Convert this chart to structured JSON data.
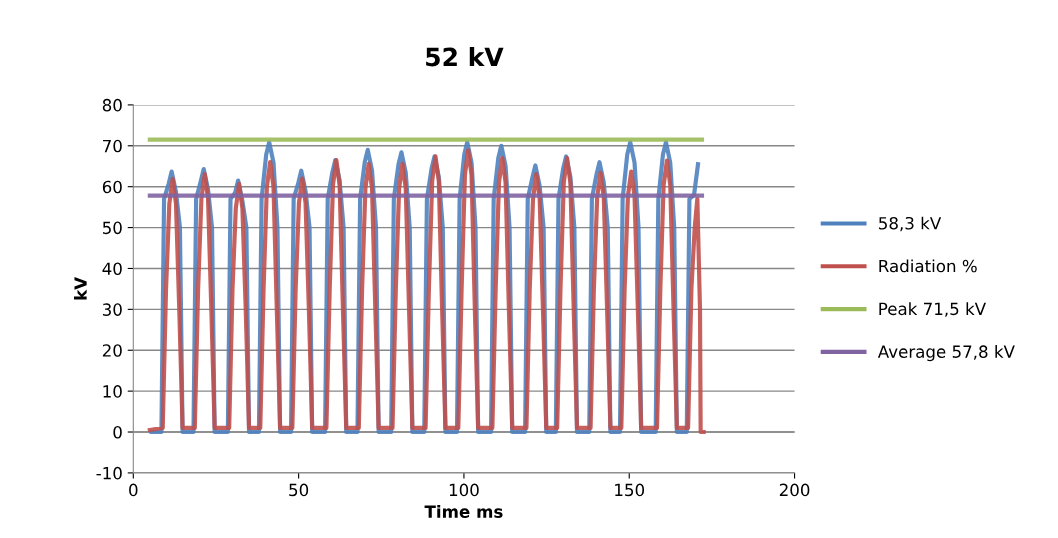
{
  "chart_data": {
    "type": "line",
    "title": "52 kV",
    "xlabel": "Time ms",
    "ylabel": "kV",
    "xlim": [
      0,
      200
    ],
    "xticks": [
      0,
      50,
      100,
      150,
      200
    ],
    "ylim": [
      -10,
      80
    ],
    "yticks": [
      -10,
      0,
      10,
      20,
      30,
      40,
      50,
      60,
      70,
      80
    ],
    "grid": "y",
    "legend": "right",
    "marker": "none",
    "line_style": "solid",
    "series": [
      {
        "name": "58,3 kV",
        "color": "#4f81bd",
        "x": [
          5.5,
          8.5,
          9.3,
          10.7,
          11.6,
          12.9,
          14.1,
          14.9,
          18.2,
          19.0,
          20.4,
          21.3,
          22.6,
          23.8,
          24.6,
          28.6,
          29.4,
          30.8,
          31.7,
          33.0,
          34.2,
          35.0,
          38.0,
          38.8,
          40.2,
          41.1,
          42.4,
          43.6,
          44.4,
          47.7,
          48.5,
          49.9,
          50.8,
          52.1,
          53.3,
          54.1,
          58.0,
          58.8,
          60.2,
          61.1,
          62.4,
          63.6,
          64.4,
          67.8,
          68.6,
          70.0,
          70.9,
          72.2,
          73.4,
          74.2,
          78.0,
          78.8,
          80.2,
          81.1,
          82.4,
          83.6,
          84.4,
          88.0,
          88.8,
          90.2,
          91.1,
          92.4,
          93.6,
          94.4,
          97.9,
          98.7,
          100.1,
          101.0,
          102.3,
          103.5,
          104.3,
          108.2,
          109.0,
          110.4,
          111.3,
          112.6,
          113.8,
          114.6,
          118.5,
          119.3,
          120.7,
          121.6,
          122.9,
          124.1,
          124.9,
          127.8,
          128.6,
          130.0,
          130.9,
          132.2,
          133.4,
          134.2,
          137.9,
          138.7,
          140.1,
          141.0,
          142.3,
          143.5,
          144.3,
          147.2,
          148.0,
          149.4,
          150.3,
          151.6,
          152.8,
          153.6,
          158.0,
          158.8,
          160.2,
          161.1,
          162.4,
          163.6,
          164.4,
          167.4,
          168.2,
          169.6,
          170.8
        ],
        "values": [
          0,
          0,
          57,
          60.7,
          63.7,
          58.7,
          50,
          0,
          0,
          57,
          61.3,
          64.3,
          59.3,
          50,
          0,
          0,
          57,
          58.5,
          61.5,
          56.5,
          50,
          0,
          0,
          57,
          67.9,
          70.9,
          65.9,
          50,
          0,
          0,
          57,
          60.9,
          63.9,
          58.9,
          50,
          0,
          0,
          57,
          63.5,
          66.5,
          61.5,
          50,
          0,
          0,
          57,
          66,
          69,
          64,
          50,
          0,
          0,
          57,
          65.4,
          68.4,
          63.4,
          50,
          0,
          0,
          57,
          64.4,
          67.4,
          62.4,
          50,
          0,
          0,
          57,
          67.9,
          70.9,
          65.9,
          50,
          0,
          0,
          57,
          67,
          70,
          65,
          50,
          0,
          0,
          57,
          62.2,
          65.2,
          60.2,
          50,
          0,
          0,
          57,
          64.4,
          67.4,
          62.4,
          50,
          0,
          0,
          57,
          63,
          66,
          61,
          50,
          0,
          0,
          57,
          67.9,
          70.9,
          65.9,
          50,
          0,
          0,
          57,
          67.9,
          70.9,
          65.9,
          50,
          0,
          0,
          57,
          58,
          65.5
        ]
      },
      {
        "name": "Radiation %",
        "color": "#c0504d",
        "x": [
          5.0,
          8.9,
          9.9,
          10.9,
          11.9,
          12.9,
          13.9,
          14.9,
          18.6,
          19.6,
          20.6,
          21.6,
          22.6,
          23.6,
          24.6,
          29.0,
          30.0,
          31.0,
          32.0,
          33.0,
          34.0,
          35.0,
          38.4,
          39.4,
          40.4,
          41.4,
          42.4,
          43.4,
          44.4,
          48.1,
          49.1,
          50.1,
          51.1,
          52.1,
          53.1,
          54.1,
          58.4,
          59.4,
          60.4,
          61.4,
          62.4,
          63.4,
          64.4,
          68.2,
          69.2,
          70.2,
          71.2,
          72.2,
          73.2,
          74.2,
          78.4,
          79.4,
          80.4,
          81.4,
          82.4,
          83.4,
          84.4,
          88.4,
          89.4,
          90.4,
          91.4,
          92.4,
          93.4,
          94.4,
          98.3,
          99.3,
          100.3,
          101.3,
          102.3,
          103.3,
          104.3,
          108.6,
          109.6,
          110.6,
          111.6,
          112.6,
          113.6,
          114.6,
          118.9,
          119.9,
          120.9,
          121.9,
          122.9,
          123.9,
          124.9,
          128.2,
          129.2,
          130.2,
          131.2,
          132.2,
          133.2,
          134.2,
          138.3,
          139.3,
          140.3,
          141.3,
          142.3,
          143.3,
          144.3,
          147.6,
          148.6,
          149.6,
          150.6,
          151.6,
          152.6,
          153.6,
          158.4,
          159.4,
          160.4,
          161.4,
          162.4,
          163.4,
          164.4,
          167.8,
          168.8,
          169.8,
          170.6,
          171.4,
          171.6,
          172.5
        ],
        "values": [
          0.5,
          1,
          35,
          55.9,
          61.9,
          55.9,
          30,
          1,
          1,
          35,
          57.1,
          63.1,
          57.1,
          30,
          1,
          1,
          35,
          54.7,
          60.7,
          54.7,
          30,
          1,
          1,
          35,
          60,
          66,
          60,
          30,
          1,
          1,
          35,
          56,
          62,
          56,
          30,
          1,
          1,
          35,
          60.5,
          66.5,
          60.5,
          30,
          1,
          1,
          35,
          59.6,
          65.6,
          59.6,
          30,
          1,
          1,
          35,
          59.6,
          65.6,
          59.6,
          30,
          1,
          1,
          35,
          61.4,
          67.4,
          61.4,
          30,
          1,
          1,
          35,
          62.9,
          68.9,
          62.9,
          30,
          1,
          1,
          35,
          61,
          67,
          61,
          30,
          1,
          1,
          35,
          57.1,
          63.1,
          57.1,
          30,
          1,
          1,
          35,
          61,
          67,
          61,
          30,
          1,
          1,
          35,
          57.4,
          63.4,
          57.4,
          30,
          1,
          1,
          35,
          57.7,
          63.7,
          57.7,
          30,
          1,
          1,
          35,
          60.4,
          66.4,
          60.4,
          30,
          1,
          1,
          35,
          50,
          57,
          30,
          0,
          0
        ]
      },
      {
        "name": "Peak 71,5 kV",
        "color": "#9bbb59",
        "x": [
          5,
          172
        ],
        "values": [
          71.5,
          71.5
        ]
      },
      {
        "name": "Average 57,8 kV",
        "color": "#8064a2",
        "x": [
          5,
          172
        ],
        "values": [
          57.8,
          57.8
        ]
      }
    ]
  }
}
